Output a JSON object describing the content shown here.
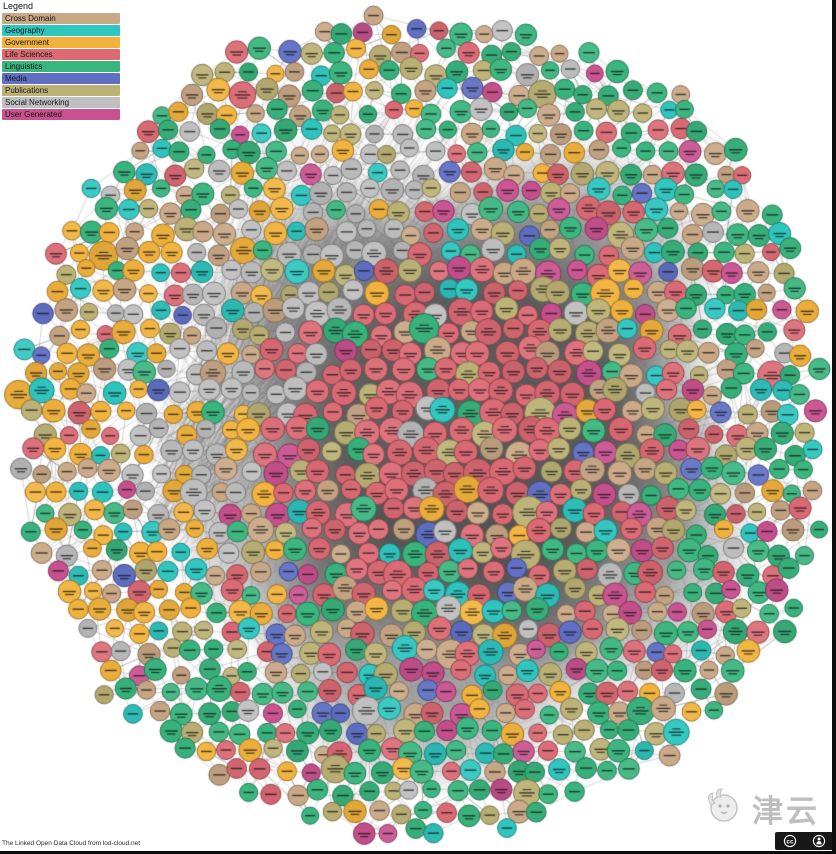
{
  "page": {
    "title": "The Linked Open Data Cloud"
  },
  "legend": {
    "title": "Legend",
    "items": [
      {
        "key": "cross-domain",
        "label": "Cross Domain",
        "color": "#c9a886"
      },
      {
        "key": "geography",
        "label": "Geography",
        "color": "#2fc6bf"
      },
      {
        "key": "government",
        "label": "Government",
        "color": "#f2b33d"
      },
      {
        "key": "life-sciences",
        "label": "Life Sciences",
        "color": "#db6a74"
      },
      {
        "key": "linguistics",
        "label": "Linguistics",
        "color": "#39b57e"
      },
      {
        "key": "media",
        "label": "Media",
        "color": "#5f6fc3"
      },
      {
        "key": "publications",
        "label": "Publications",
        "color": "#bdb276"
      },
      {
        "key": "social-networking",
        "label": "Social Networking",
        "color": "#bfbfbf"
      },
      {
        "key": "user-generated",
        "label": "User Generated",
        "color": "#c9518f"
      }
    ]
  },
  "chart_data": {
    "type": "network",
    "title": "The Linked Open Data Cloud",
    "node_count_estimate": 1100,
    "edge_style": "thin gray links, extremely dense in the centre",
    "labels_legible": false,
    "categories": [
      "Cross Domain",
      "Geography",
      "Government",
      "Life Sciences",
      "Linguistics",
      "Media",
      "Publications",
      "Social Networking",
      "User Generated"
    ],
    "category_colors": [
      "#c9a886",
      "#2fc6bf",
      "#f2b33d",
      "#db6a74",
      "#39b57e",
      "#5f6fc3",
      "#bdb276",
      "#bfbfbf",
      "#c9518f"
    ],
    "layout_notes": {
      "shape": "roughly circular cloud filling the canvas",
      "core": "dense Life Sciences (red) dominated centre over near-solid dark-grey edge mass",
      "west_band": "Government (orange) dominated left / upper-left band",
      "upper_left": "grey Social Networking nodes with a streaky fan-shaped edge bundle",
      "outer_ring": "Linguistics (green) dominated outer ring on top, right and bottom",
      "mixed": "Publications, Cross Domain, Geography, Media and User Generated scattered throughout"
    }
  },
  "attribution": {
    "text": "The Linked Open Data Cloud from lod-cloud.net"
  },
  "watermark": {
    "text": "津云"
  },
  "license_badge": {
    "left_icon": "cc-icon",
    "right_icon": "by-person-icon",
    "label": "BY"
  }
}
